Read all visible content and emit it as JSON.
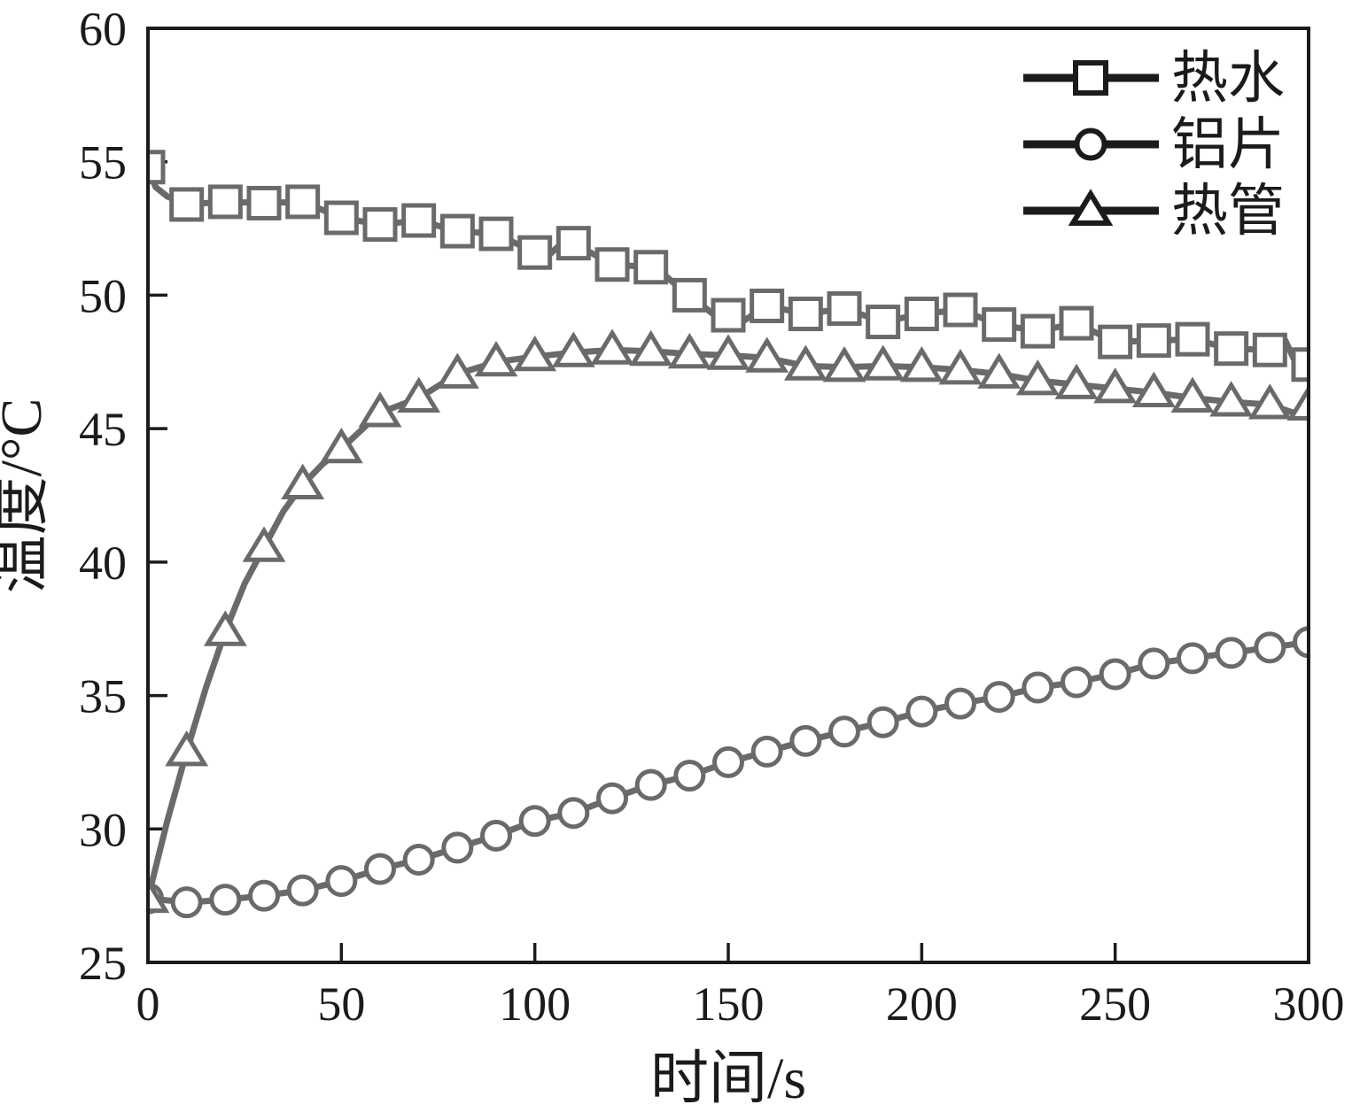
{
  "figure": {
    "background": "#ffffff",
    "axis_color": "#1b1b1b",
    "series_color": "#6a6a6a",
    "marker_fill": "#ffffff",
    "legend_color": "#1b1b1b"
  },
  "chart_data": {
    "type": "line",
    "title": "",
    "xlabel": "时间/s",
    "ylabel": "温度/°C",
    "xlim": [
      0,
      300
    ],
    "ylim": [
      25,
      60
    ],
    "xticks": [
      0,
      50,
      100,
      150,
      200,
      250,
      300
    ],
    "yticks": [
      25,
      30,
      35,
      40,
      45,
      50,
      55,
      60
    ],
    "grid": false,
    "legend_position": "top-right-inside",
    "marker_interval_s": 10,
    "series": [
      {
        "name": "热水",
        "slug": "hot-water",
        "marker": "square",
        "x": [
          0,
          10,
          20,
          30,
          40,
          50,
          60,
          70,
          80,
          90,
          100,
          110,
          120,
          130,
          140,
          150,
          160,
          170,
          180,
          190,
          200,
          210,
          220,
          230,
          240,
          250,
          260,
          270,
          280,
          290,
          300
        ],
        "y": [
          54.8,
          53.4,
          53.5,
          53.45,
          53.5,
          52.9,
          52.65,
          52.8,
          52.4,
          52.3,
          51.6,
          51.95,
          51.15,
          51.05,
          50.0,
          49.25,
          49.6,
          49.3,
          49.5,
          49.0,
          49.3,
          49.45,
          48.9,
          48.65,
          48.95,
          48.25,
          48.3,
          48.35,
          48.0,
          47.95,
          47.4
        ],
        "line_extra": [
          [
            2,
            54.05
          ],
          [
            5,
            53.7
          ],
          [
            104,
            51.55
          ],
          [
            107,
            51.95
          ],
          [
            134,
            50.7
          ],
          [
            138,
            50.2
          ],
          [
            146,
            49.3
          ],
          [
            153,
            48.95
          ],
          [
            294,
            48.3
          ],
          [
            297,
            47.35
          ]
        ]
      },
      {
        "name": "铝片",
        "slug": "aluminum-sheet",
        "marker": "circle",
        "x": [
          0,
          10,
          20,
          30,
          40,
          50,
          60,
          70,
          80,
          90,
          100,
          110,
          120,
          130,
          140,
          150,
          160,
          170,
          180,
          190,
          200,
          210,
          220,
          230,
          240,
          250,
          260,
          270,
          280,
          290,
          300
        ],
        "y": [
          27.4,
          27.25,
          27.35,
          27.5,
          27.7,
          28.05,
          28.5,
          28.85,
          29.3,
          29.75,
          30.3,
          30.6,
          31.15,
          31.65,
          32.0,
          32.5,
          32.9,
          33.3,
          33.65,
          34.0,
          34.4,
          34.7,
          34.95,
          35.3,
          35.5,
          35.8,
          36.2,
          36.4,
          36.6,
          36.8,
          37.0
        ],
        "line_extra": []
      },
      {
        "name": "热管",
        "slug": "heat-pipe",
        "marker": "triangle",
        "x": [
          0,
          10,
          20,
          30,
          40,
          50,
          60,
          70,
          80,
          90,
          100,
          110,
          120,
          130,
          140,
          150,
          160,
          170,
          180,
          190,
          200,
          210,
          220,
          230,
          240,
          250,
          260,
          270,
          280,
          290,
          300
        ],
        "y": [
          27.4,
          32.9,
          37.4,
          40.55,
          42.9,
          44.25,
          45.6,
          46.15,
          47.05,
          47.5,
          47.7,
          47.85,
          47.95,
          47.9,
          47.8,
          47.75,
          47.65,
          47.35,
          47.3,
          47.35,
          47.3,
          47.2,
          47.05,
          46.8,
          46.65,
          46.5,
          46.35,
          46.15,
          46.0,
          45.9,
          45.85
        ],
        "line_extra": [
          [
            5,
            30.3
          ],
          [
            15,
            35.3
          ],
          [
            25,
            39.2
          ],
          [
            35,
            41.9
          ],
          [
            45,
            43.65
          ],
          [
            296,
            45.6
          ]
        ]
      }
    ]
  }
}
